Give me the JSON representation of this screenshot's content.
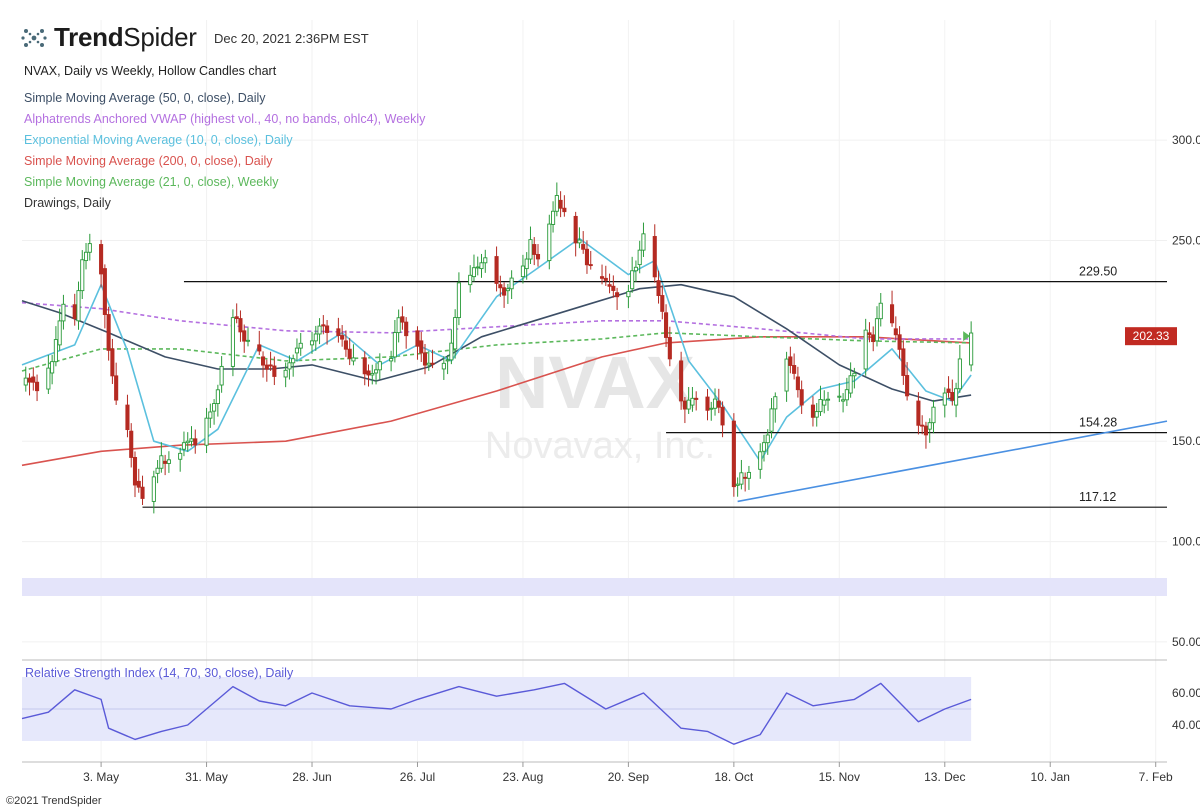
{
  "brand": {
    "name_bold": "Trend",
    "name_light": "Spider",
    "date": "Dec 20, 2021 2:36PM EST"
  },
  "legend": {
    "title": "NVAX, Daily vs Weekly, Hollow Candles chart",
    "items": [
      {
        "label": "Simple Moving Average (50, 0, close), Daily",
        "color": "#3d4f66"
      },
      {
        "label": "Alphatrends Anchored VWAP (highest vol., 40, no bands, ohlc4), Weekly",
        "color": "#b470e0"
      },
      {
        "label": "Exponential Moving Average (10, 0, close), Daily",
        "color": "#5bc0de"
      },
      {
        "label": "Simple Moving Average (200, 0, close), Daily",
        "color": "#d9534f"
      },
      {
        "label": "Simple Moving Average (21, 0, close), Weekly",
        "color": "#5cb85c"
      },
      {
        "label": "Drawings, Daily",
        "color": "#333333"
      }
    ]
  },
  "watermark": {
    "ticker": "NVAX",
    "company": "Novavax, Inc."
  },
  "copyright": "©2021 TrendSpider",
  "chart_data": {
    "type": "candlestick",
    "ticker": "NVAX",
    "ylim": [
      40,
      320
    ],
    "y_ticks": [
      "300.00",
      "250.00",
      "150.00",
      "100.00",
      "50.00"
    ],
    "y_tick_values": [
      300,
      250,
      150,
      100,
      50
    ],
    "x_ticks": [
      "3. May",
      "31. May",
      "28. Jun",
      "26. Jul",
      "23. Aug",
      "20. Sep",
      "18. Oct",
      "15. Nov",
      "13. Dec",
      "10. Jan",
      "7. Feb"
    ],
    "x_range": [
      "2021-04-12",
      "2022-02-10"
    ],
    "last_price": "202.33",
    "price_levels": [
      {
        "label": "229.50",
        "value": 229.5,
        "from": "2021-05-25"
      },
      {
        "label": "154.28",
        "value": 154.28,
        "from": "2021-09-30"
      },
      {
        "label": "117.12",
        "value": 117.12,
        "from": "2021-05-14"
      }
    ],
    "trendline": {
      "from": [
        "2021-10-19",
        120
      ],
      "to": [
        "2022-02-10",
        160
      ]
    },
    "close_series": [
      [
        "2021-04-12",
        178
      ],
      [
        "2021-04-14",
        182
      ],
      [
        "2021-04-16",
        176
      ],
      [
        "2021-04-19",
        184
      ],
      [
        "2021-04-21",
        198
      ],
      [
        "2021-04-23",
        218
      ],
      [
        "2021-04-26",
        210
      ],
      [
        "2021-04-28",
        240
      ],
      [
        "2021-04-30",
        248
      ],
      [
        "2021-05-03",
        236
      ],
      [
        "2021-05-05",
        196
      ],
      [
        "2021-05-07",
        168
      ],
      [
        "2021-05-10",
        155
      ],
      [
        "2021-05-12",
        130
      ],
      [
        "2021-05-14",
        120
      ],
      [
        "2021-05-17",
        134
      ],
      [
        "2021-05-19",
        140
      ],
      [
        "2021-05-21",
        141
      ],
      [
        "2021-05-24",
        146
      ],
      [
        "2021-05-26",
        150
      ],
      [
        "2021-05-28",
        148
      ],
      [
        "2021-06-01",
        165
      ],
      [
        "2021-06-03",
        178
      ],
      [
        "2021-06-07",
        212
      ],
      [
        "2021-06-09",
        205
      ],
      [
        "2021-06-11",
        198
      ],
      [
        "2021-06-14",
        192
      ],
      [
        "2021-06-16",
        188
      ],
      [
        "2021-06-18",
        182
      ],
      [
        "2021-06-21",
        186
      ],
      [
        "2021-06-23",
        194
      ],
      [
        "2021-06-25",
        198
      ],
      [
        "2021-06-28",
        200
      ],
      [
        "2021-06-30",
        208
      ],
      [
        "2021-07-02",
        206
      ],
      [
        "2021-07-06",
        200
      ],
      [
        "2021-07-08",
        190
      ],
      [
        "2021-07-12",
        185
      ],
      [
        "2021-07-14",
        184
      ],
      [
        "2021-07-16",
        190
      ],
      [
        "2021-07-19",
        192
      ],
      [
        "2021-07-21",
        212
      ],
      [
        "2021-07-23",
        205
      ],
      [
        "2021-07-26",
        200
      ],
      [
        "2021-07-28",
        188
      ],
      [
        "2021-07-30",
        186
      ],
      [
        "2021-08-02",
        190
      ],
      [
        "2021-08-04",
        196
      ],
      [
        "2021-08-06",
        228
      ],
      [
        "2021-08-09",
        232
      ],
      [
        "2021-08-11",
        236
      ],
      [
        "2021-08-13",
        242
      ],
      [
        "2021-08-16",
        228
      ],
      [
        "2021-08-18",
        225
      ],
      [
        "2021-08-20",
        232
      ],
      [
        "2021-08-23",
        236
      ],
      [
        "2021-08-25",
        248
      ],
      [
        "2021-08-27",
        240
      ],
      [
        "2021-08-30",
        258
      ],
      [
        "2021-09-01",
        270
      ],
      [
        "2021-09-03",
        262
      ],
      [
        "2021-09-07",
        248
      ],
      [
        "2021-09-09",
        238
      ],
      [
        "2021-09-11",
        232
      ],
      [
        "2021-09-14",
        228
      ],
      [
        "2021-09-16",
        224
      ],
      [
        "2021-09-20",
        226
      ],
      [
        "2021-09-22",
        238
      ],
      [
        "2021-09-24",
        252
      ],
      [
        "2021-09-27",
        230
      ],
      [
        "2021-09-29",
        214
      ],
      [
        "2021-10-01",
        190
      ],
      [
        "2021-10-04",
        170
      ],
      [
        "2021-10-06",
        168
      ],
      [
        "2021-10-08",
        172
      ],
      [
        "2021-10-11",
        166
      ],
      [
        "2021-10-13",
        170
      ],
      [
        "2021-10-15",
        160
      ],
      [
        "2021-10-18",
        128
      ],
      [
        "2021-10-20",
        132
      ],
      [
        "2021-10-22",
        136
      ],
      [
        "2021-10-25",
        145
      ],
      [
        "2021-10-27",
        155
      ],
      [
        "2021-10-29",
        175
      ],
      [
        "2021-11-01",
        192
      ],
      [
        "2021-11-03",
        182
      ],
      [
        "2021-11-05",
        168
      ],
      [
        "2021-11-08",
        162
      ],
      [
        "2021-11-10",
        168
      ],
      [
        "2021-11-12",
        172
      ],
      [
        "2021-11-15",
        170
      ],
      [
        "2021-11-17",
        174
      ],
      [
        "2021-11-19",
        186
      ],
      [
        "2021-11-22",
        204
      ],
      [
        "2021-11-24",
        200
      ],
      [
        "2021-11-26",
        218
      ],
      [
        "2021-11-29",
        206
      ],
      [
        "2021-12-01",
        196
      ],
      [
        "2021-12-03",
        170
      ],
      [
        "2021-12-06",
        158
      ],
      [
        "2021-12-08",
        156
      ],
      [
        "2021-12-10",
        168
      ],
      [
        "2021-12-13",
        176
      ],
      [
        "2021-12-15",
        168
      ],
      [
        "2021-12-17",
        188
      ],
      [
        "2021-12-20",
        202.33
      ]
    ],
    "overlays": [
      {
        "name": "Simple Moving Average (50, 0, close), Daily",
        "color": "#3d4f66",
        "points": [
          [
            "2021-04-12",
            220
          ],
          [
            "2021-04-22",
            214
          ],
          [
            "2021-05-05",
            204
          ],
          [
            "2021-05-20",
            192
          ],
          [
            "2021-06-03",
            186
          ],
          [
            "2021-06-17",
            186
          ],
          [
            "2021-06-28",
            188
          ],
          [
            "2021-07-15",
            180
          ],
          [
            "2021-07-29",
            187
          ],
          [
            "2021-08-12",
            202
          ],
          [
            "2021-08-26",
            210
          ],
          [
            "2021-09-09",
            218
          ],
          [
            "2021-09-23",
            226
          ],
          [
            "2021-10-04",
            228
          ],
          [
            "2021-10-18",
            222
          ],
          [
            "2021-11-01",
            206
          ],
          [
            "2021-11-15",
            188
          ],
          [
            "2021-11-29",
            176
          ],
          [
            "2021-12-10",
            170
          ],
          [
            "2021-12-20",
            173
          ]
        ]
      },
      {
        "name": "Alphatrends Anchored VWAP (highest vol., 40, no bands, ohlc4), Weekly",
        "color": "#b470e0",
        "dashed": true,
        "points": [
          [
            "2021-04-12",
            219
          ],
          [
            "2021-05-03",
            216
          ],
          [
            "2021-05-24",
            210
          ],
          [
            "2021-06-21",
            205
          ],
          [
            "2021-07-19",
            204
          ],
          [
            "2021-08-16",
            207
          ],
          [
            "2021-09-13",
            210
          ],
          [
            "2021-09-30",
            210
          ],
          [
            "2021-10-25",
            206
          ],
          [
            "2021-11-22",
            201
          ],
          [
            "2021-12-20",
            201
          ]
        ]
      },
      {
        "name": "Exponential Moving Average (10, 0, close), Daily",
        "color": "#5bc0de",
        "points": [
          [
            "2021-04-12",
            188
          ],
          [
            "2021-04-26",
            198
          ],
          [
            "2021-05-03",
            228
          ],
          [
            "2021-05-10",
            195
          ],
          [
            "2021-05-17",
            150
          ],
          [
            "2021-05-26",
            145
          ],
          [
            "2021-06-03",
            156
          ],
          [
            "2021-06-14",
            198
          ],
          [
            "2021-06-24",
            190
          ],
          [
            "2021-07-06",
            204
          ],
          [
            "2021-07-16",
            188
          ],
          [
            "2021-07-26",
            198
          ],
          [
            "2021-08-04",
            190
          ],
          [
            "2021-08-16",
            222
          ],
          [
            "2021-08-26",
            235
          ],
          [
            "2021-09-07",
            251
          ],
          [
            "2021-09-20",
            233
          ],
          [
            "2021-09-27",
            240
          ],
          [
            "2021-10-06",
            190
          ],
          [
            "2021-10-15",
            168
          ],
          [
            "2021-10-25",
            140
          ],
          [
            "2021-11-01",
            162
          ],
          [
            "2021-11-10",
            176
          ],
          [
            "2021-11-19",
            180
          ],
          [
            "2021-11-29",
            196
          ],
          [
            "2021-12-08",
            175
          ],
          [
            "2021-12-15",
            170
          ],
          [
            "2021-12-20",
            183
          ]
        ]
      },
      {
        "name": "Simple Moving Average (200, 0, close), Daily",
        "color": "#d9534f",
        "points": [
          [
            "2021-04-12",
            138
          ],
          [
            "2021-05-03",
            145
          ],
          [
            "2021-05-24",
            148
          ],
          [
            "2021-06-21",
            150
          ],
          [
            "2021-07-19",
            160
          ],
          [
            "2021-08-16",
            175
          ],
          [
            "2021-09-13",
            192
          ],
          [
            "2021-09-30",
            199
          ],
          [
            "2021-10-25",
            202
          ],
          [
            "2021-11-22",
            202
          ],
          [
            "2021-12-20",
            199
          ]
        ]
      },
      {
        "name": "Simple Moving Average (21, 0, close), Weekly",
        "color": "#5cb85c",
        "dashed": true,
        "points": [
          [
            "2021-04-12",
            185
          ],
          [
            "2021-05-03",
            196
          ],
          [
            "2021-05-24",
            196
          ],
          [
            "2021-06-21",
            190
          ],
          [
            "2021-07-19",
            192
          ],
          [
            "2021-08-16",
            198
          ],
          [
            "2021-09-13",
            201
          ],
          [
            "2021-09-30",
            204
          ],
          [
            "2021-10-25",
            202
          ],
          [
            "2021-11-22",
            200
          ],
          [
            "2021-12-20",
            199
          ]
        ]
      }
    ],
    "rsi": {
      "label": "Relative Strength Index (14, 70, 30, close), Daily",
      "y_ticks": [
        "60.00",
        "40.00"
      ],
      "y_tick_values": [
        60,
        40
      ],
      "ylim": [
        25,
        75
      ],
      "band": [
        30,
        70
      ],
      "color": "#5a5ad8",
      "points": [
        [
          "2021-04-12",
          44
        ],
        [
          "2021-04-19",
          48
        ],
        [
          "2021-04-26",
          62
        ],
        [
          "2021-05-03",
          56
        ],
        [
          "2021-05-05",
          38
        ],
        [
          "2021-05-12",
          31
        ],
        [
          "2021-05-19",
          36
        ],
        [
          "2021-05-26",
          40
        ],
        [
          "2021-06-07",
          64
        ],
        [
          "2021-06-14",
          55
        ],
        [
          "2021-06-21",
          52
        ],
        [
          "2021-06-28",
          60
        ],
        [
          "2021-07-08",
          52
        ],
        [
          "2021-07-19",
          50
        ],
        [
          "2021-07-26",
          56
        ],
        [
          "2021-08-06",
          64
        ],
        [
          "2021-08-16",
          58
        ],
        [
          "2021-08-26",
          62
        ],
        [
          "2021-09-03",
          66
        ],
        [
          "2021-09-14",
          50
        ],
        [
          "2021-09-24",
          60
        ],
        [
          "2021-10-04",
          38
        ],
        [
          "2021-10-11",
          36
        ],
        [
          "2021-10-18",
          28
        ],
        [
          "2021-10-25",
          34
        ],
        [
          "2021-11-01",
          60
        ],
        [
          "2021-11-08",
          52
        ],
        [
          "2021-11-19",
          56
        ],
        [
          "2021-11-26",
          66
        ],
        [
          "2021-12-06",
          42
        ],
        [
          "2021-12-13",
          50
        ],
        [
          "2021-12-20",
          56
        ]
      ]
    }
  }
}
